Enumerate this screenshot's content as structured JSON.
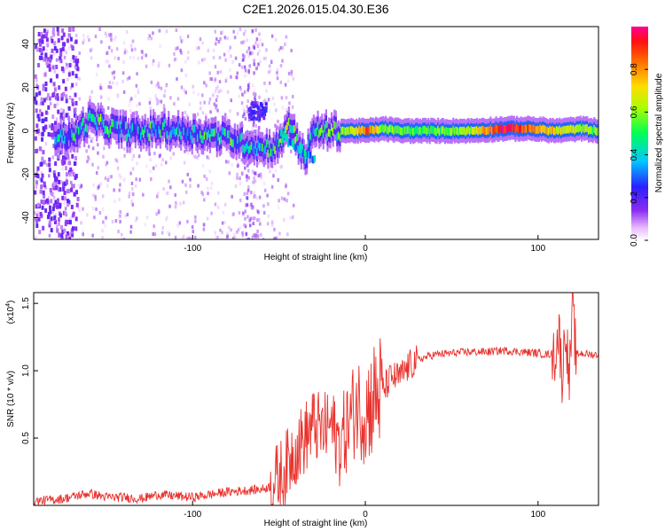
{
  "page": {
    "title": "C2E1.2026.015.04.30.E36"
  },
  "colors": {
    "background": "#ffffff",
    "axis": "#000000",
    "snr_line": "#e8322d"
  },
  "chart_data": [
    {
      "type": "heatmap",
      "title": "C2E1.2026.015.04.30.E36",
      "xlabel": "Height of straight line (km)",
      "ylabel": "Frequency (Hz)",
      "xlim": [
        -192,
        135
      ],
      "ylim": [
        -50,
        48
      ],
      "xticks": [
        -100,
        0,
        100
      ],
      "xtick_labels": [
        "-100",
        "0",
        "100"
      ],
      "yticks": [
        -40,
        -20,
        0,
        20,
        40
      ],
      "ytick_labels": [
        "-40",
        "-20",
        "0",
        "20",
        "40"
      ],
      "colormap": "rainbow (white-purple-blue-cyan-green-yellow-orange-red-magenta)",
      "description_points": [
        {
          "x": -180,
          "y": -2,
          "v": 0.45
        },
        {
          "x": -170,
          "y": -3,
          "v": 0.35
        },
        {
          "x": -160,
          "y": 5,
          "v": 0.5
        },
        {
          "x": -150,
          "y": 2,
          "v": 0.45
        },
        {
          "x": -140,
          "y": 0,
          "v": 0.4
        },
        {
          "x": -130,
          "y": -1,
          "v": 0.4
        },
        {
          "x": -120,
          "y": 1,
          "v": 0.4
        },
        {
          "x": -110,
          "y": 0,
          "v": 0.4
        },
        {
          "x": -100,
          "y": -1,
          "v": 0.4
        },
        {
          "x": -90,
          "y": -2,
          "v": 0.45
        },
        {
          "x": -80,
          "y": -3,
          "v": 0.45
        },
        {
          "x": -70,
          "y": -6,
          "v": 0.4
        },
        {
          "x": -60,
          "y": -8,
          "v": 0.4
        },
        {
          "x": -50,
          "y": -7,
          "v": 0.45
        },
        {
          "x": -45,
          "y": 5,
          "v": 0.55
        },
        {
          "x": -40,
          "y": -5,
          "v": 0.5
        },
        {
          "x": -35,
          "y": -12,
          "v": 0.35
        },
        {
          "x": -30,
          "y": 0,
          "v": 0.45
        },
        {
          "x": -20,
          "y": 0,
          "v": 0.5
        },
        {
          "x": -10,
          "y": 0,
          "v": 0.6
        },
        {
          "x": 0,
          "y": 0,
          "v": 0.85
        },
        {
          "x": 10,
          "y": 1,
          "v": 0.6
        },
        {
          "x": 20,
          "y": 0,
          "v": 0.55
        },
        {
          "x": 40,
          "y": 0,
          "v": 0.55
        },
        {
          "x": 60,
          "y": 0,
          "v": 0.6
        },
        {
          "x": 80,
          "y": 1,
          "v": 0.95
        },
        {
          "x": 95,
          "y": 1,
          "v": 0.85
        },
        {
          "x": 110,
          "y": 0,
          "v": 0.7
        },
        {
          "x": 125,
          "y": 1,
          "v": 0.6
        },
        {
          "x": 135,
          "y": 0,
          "v": 0.55
        }
      ]
    },
    {
      "type": "colorbar",
      "label": "Normalized spectral amplitude",
      "range": [
        0.0,
        1.0
      ],
      "ticks": [
        0.0,
        0.2,
        0.4,
        0.6,
        0.8
      ],
      "tick_labels": [
        "0.0",
        "0.2",
        "0.4",
        "0.6",
        "0.8"
      ]
    },
    {
      "type": "line",
      "xlabel": "Height of straight line (km)",
      "ylabel": "SNR (10 * v/v)",
      "yscale_label": "(x10",
      "yscale_exponent": "4",
      "yscale_suffix": ")",
      "xlim": [
        -192,
        135
      ],
      "ylim": [
        0,
        1.58
      ],
      "xticks": [
        -100,
        0,
        100
      ],
      "xtick_labels": [
        "-100",
        "0",
        "100"
      ],
      "yticks": [
        0.5,
        1.0,
        1.5
      ],
      "ytick_labels": [
        "0.5",
        "1.0",
        "1.5"
      ],
      "series": [
        {
          "name": "SNR",
          "color": "#e8322d",
          "x": [
            -192,
            -175,
            -160,
            -150,
            -140,
            -130,
            -120,
            -110,
            -100,
            -90,
            -80,
            -70,
            -60,
            -55,
            -50,
            -45,
            -42,
            -38,
            -35,
            -30,
            -25,
            -20,
            -15,
            -10,
            -5,
            0,
            5,
            10,
            15,
            20,
            25,
            30,
            40,
            50,
            60,
            70,
            80,
            90,
            100,
            105,
            110,
            112,
            114,
            116,
            118,
            120,
            122,
            125,
            130,
            135
          ],
          "y": [
            0.03,
            0.05,
            0.09,
            0.06,
            0.06,
            0.05,
            0.08,
            0.07,
            0.06,
            0.08,
            0.1,
            0.11,
            0.12,
            0.14,
            0.2,
            0.3,
            0.4,
            0.45,
            0.5,
            0.6,
            0.55,
            0.6,
            0.45,
            0.6,
            0.75,
            0.7,
            0.8,
            0.85,
            0.95,
            0.95,
            1.03,
            1.08,
            1.12,
            1.13,
            1.14,
            1.14,
            1.15,
            1.14,
            1.13,
            1.12,
            1.13,
            1.3,
            0.95,
            1.35,
            0.9,
            1.45,
            1.12,
            1.13,
            1.12,
            1.12
          ]
        }
      ]
    }
  ]
}
